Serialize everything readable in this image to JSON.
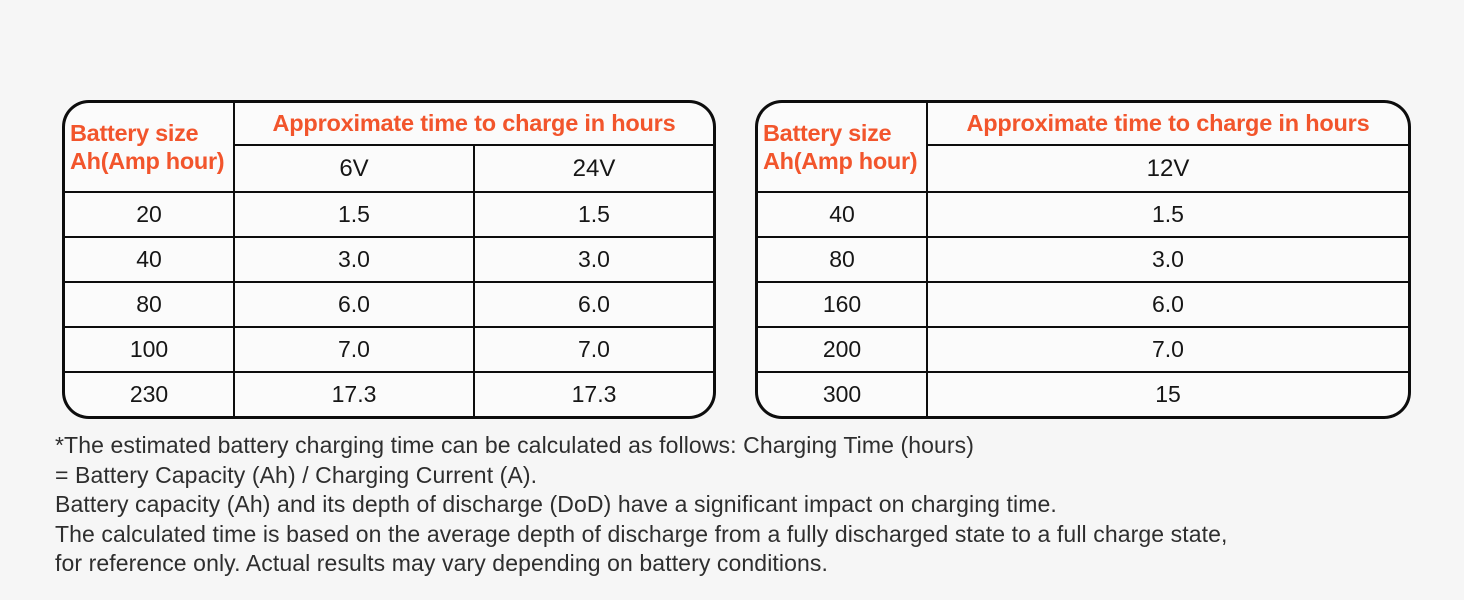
{
  "colors": {
    "accent": "#F2552C",
    "background": "#F6F6F6",
    "cell_background": "#FBFBFB",
    "border": "#0D0D0D",
    "text": "#161616",
    "footnote_text": "#2E2E2E"
  },
  "chart_data": [
    {
      "type": "table",
      "corner_header_line1": "Battery size",
      "corner_header_line2": "Ah(Amp hour)",
      "main_header": "Approximate time to charge in hours",
      "voltage_columns": [
        "6V",
        "24V"
      ],
      "rows": [
        {
          "battery_size": "20",
          "times": [
            "1.5",
            "1.5"
          ]
        },
        {
          "battery_size": "40",
          "times": [
            "3.0",
            "3.0"
          ]
        },
        {
          "battery_size": "80",
          "times": [
            "6.0",
            "6.0"
          ]
        },
        {
          "battery_size": "100",
          "times": [
            "7.0",
            "7.0"
          ]
        },
        {
          "battery_size": "230",
          "times": [
            "17.3",
            "17.3"
          ]
        }
      ]
    },
    {
      "type": "table",
      "corner_header_line1": "Battery size",
      "corner_header_line2": "Ah(Amp hour)",
      "main_header": "Approximate time to charge in hours",
      "voltage_columns": [
        "12V"
      ],
      "rows": [
        {
          "battery_size": "40",
          "times": [
            "1.5"
          ]
        },
        {
          "battery_size": "80",
          "times": [
            "3.0"
          ]
        },
        {
          "battery_size": "160",
          "times": [
            "6.0"
          ]
        },
        {
          "battery_size": "200",
          "times": [
            "7.0"
          ]
        },
        {
          "battery_size": "300",
          "times": [
            "15"
          ]
        }
      ]
    }
  ],
  "footnote": {
    "lines": [
      "*The estimated battery charging time can be calculated as follows: Charging Time (hours)",
      "= Battery Capacity (Ah) / Charging Current (A).",
      "Battery capacity (Ah) and its depth of discharge (DoD) have a significant impact on charging time.",
      "The calculated time is based on the average depth of discharge from a fully discharged state to a full charge state,",
      "for reference only. Actual results may vary depending on battery conditions."
    ]
  }
}
